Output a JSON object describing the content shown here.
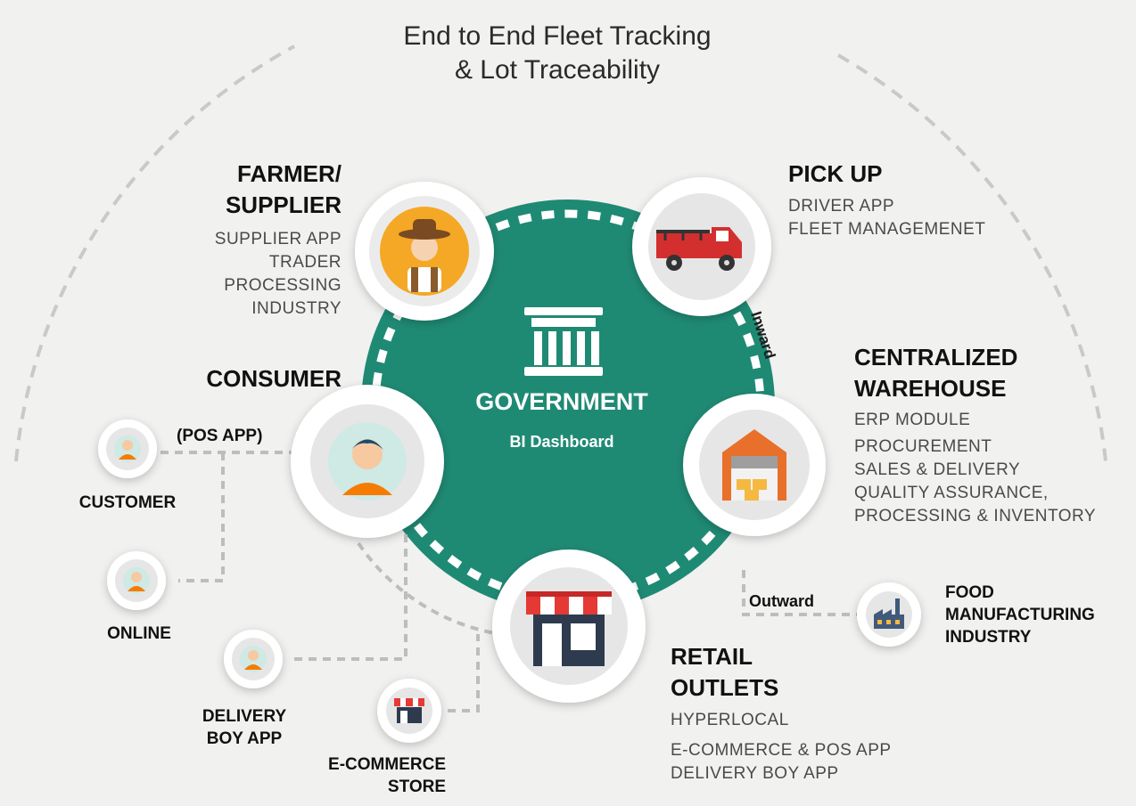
{
  "title": {
    "line1": "End to End Fleet Tracking",
    "line2": "& Lot Traceability"
  },
  "hub": {
    "title": "GOVERNMENT",
    "subtitle": "BI Dashboard",
    "icon": "government-building-icon",
    "color": "#1f8a74"
  },
  "farmer": {
    "title_lines": [
      "FARMER/",
      "SUPPLIER"
    ],
    "items": [
      "SUPPLIER APP",
      "TRADER",
      "PROCESSING",
      "INDUSTRY"
    ],
    "icon": "farmer-icon"
  },
  "pickup": {
    "title": "PICK UP",
    "items": [
      "DRIVER APP",
      "FLEET MANAGEMENET"
    ],
    "icon": "truck-icon"
  },
  "warehouse": {
    "title_lines": [
      "CENTRALIZED",
      "WAREHOUSE"
    ],
    "items": [
      "ERP MODULE",
      "PROCUREMENT",
      "SALES & DELIVERY",
      "QUALITY ASSURANCE,",
      "PROCESSING & INVENTORY"
    ],
    "icon": "warehouse-icon"
  },
  "consumer": {
    "title": "CONSUMER",
    "icon": "person-icon",
    "pos_label": "(POS APP)"
  },
  "retail": {
    "title_lines": [
      "RETAIL",
      "OUTLETS"
    ],
    "items": [
      "HYPERLOCAL",
      "E-COMMERCE & POS APP",
      "DELIVERY BOY APP"
    ],
    "icon": "store-icon"
  },
  "labels": {
    "inward": "Inward",
    "outward": "Outward"
  },
  "satellites": {
    "customer": [
      "CUSTOMER"
    ],
    "online": [
      "ONLINE"
    ],
    "delivery": [
      "DELIVERY",
      "BOY APP"
    ],
    "ecommerce": [
      "E-COMMERCE",
      "STORE"
    ],
    "food": [
      "FOOD",
      "MANUFACTURING",
      "INDUSTRY"
    ]
  }
}
